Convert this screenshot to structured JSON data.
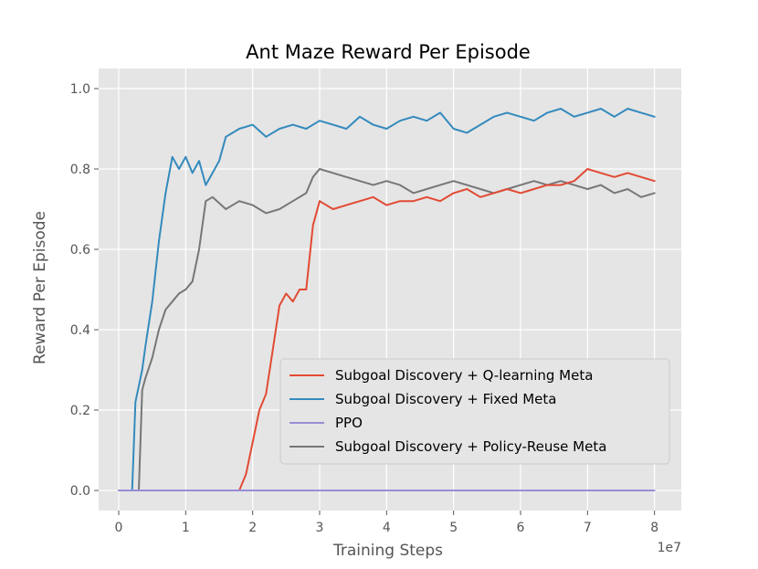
{
  "chart_data": {
    "type": "line",
    "title": "Ant Maze Reward Per Episode",
    "xlabel": "Training Steps",
    "ylabel": "Reward Per Episode",
    "x_scale_label": "1e7",
    "xlim": [
      -0.3,
      8.4
    ],
    "ylim": [
      -0.05,
      1.05
    ],
    "x_ticks": [
      0,
      1,
      2,
      3,
      4,
      5,
      6,
      7,
      8
    ],
    "y_ticks": [
      0.0,
      0.2,
      0.4,
      0.6,
      0.8,
      1.0
    ],
    "x_tick_labels": [
      "0",
      "1",
      "2",
      "3",
      "4",
      "5",
      "6",
      "7",
      "8"
    ],
    "y_tick_labels": [
      "0.0",
      "0.2",
      "0.4",
      "0.6",
      "0.8",
      "1.0"
    ],
    "grid": true,
    "legend_position": "lower-right",
    "series": [
      {
        "name": "Subgoal Discovery + Q-learning Meta",
        "color": "#e24a33",
        "x": [
          0,
          1.8,
          1.9,
          2.0,
          2.1,
          2.2,
          2.3,
          2.4,
          2.5,
          2.6,
          2.7,
          2.8,
          2.9,
          3.0,
          3.2,
          3.4,
          3.6,
          3.8,
          4.0,
          4.2,
          4.4,
          4.6,
          4.8,
          5.0,
          5.2,
          5.4,
          5.6,
          5.8,
          6.0,
          6.2,
          6.4,
          6.6,
          6.8,
          7.0,
          7.2,
          7.4,
          7.6,
          7.8,
          8.0
        ],
        "values": [
          0.0,
          0.0,
          0.04,
          0.12,
          0.2,
          0.24,
          0.35,
          0.46,
          0.49,
          0.47,
          0.5,
          0.5,
          0.66,
          0.72,
          0.7,
          0.71,
          0.72,
          0.73,
          0.71,
          0.72,
          0.72,
          0.73,
          0.72,
          0.74,
          0.75,
          0.73,
          0.74,
          0.75,
          0.74,
          0.75,
          0.76,
          0.76,
          0.77,
          0.8,
          0.79,
          0.78,
          0.79,
          0.78,
          0.77
        ]
      },
      {
        "name": "Subgoal Discovery + Fixed Meta",
        "color": "#348abd",
        "x": [
          0,
          0.2,
          0.25,
          0.3,
          0.35,
          0.4,
          0.5,
          0.6,
          0.7,
          0.8,
          0.9,
          1.0,
          1.1,
          1.2,
          1.3,
          1.4,
          1.5,
          1.6,
          1.8,
          2.0,
          2.2,
          2.4,
          2.6,
          2.8,
          3.0,
          3.2,
          3.4,
          3.6,
          3.8,
          4.0,
          4.2,
          4.4,
          4.6,
          4.8,
          5.0,
          5.2,
          5.4,
          5.6,
          5.8,
          6.0,
          6.2,
          6.4,
          6.6,
          6.8,
          7.0,
          7.2,
          7.4,
          7.6,
          7.8,
          8.0
        ],
        "values": [
          0.0,
          0.0,
          0.22,
          0.26,
          0.3,
          0.36,
          0.47,
          0.62,
          0.74,
          0.83,
          0.8,
          0.83,
          0.79,
          0.82,
          0.76,
          0.79,
          0.82,
          0.88,
          0.9,
          0.91,
          0.88,
          0.9,
          0.91,
          0.9,
          0.92,
          0.91,
          0.9,
          0.93,
          0.91,
          0.9,
          0.92,
          0.93,
          0.92,
          0.94,
          0.9,
          0.89,
          0.91,
          0.93,
          0.94,
          0.93,
          0.92,
          0.94,
          0.95,
          0.93,
          0.94,
          0.95,
          0.93,
          0.95,
          0.94,
          0.93
        ]
      },
      {
        "name": "PPO",
        "color": "#988ed5",
        "x": [
          0,
          8
        ],
        "values": [
          0.0,
          0.0
        ]
      },
      {
        "name": "Subgoal Discovery + Policy-Reuse Meta",
        "color": "#777777",
        "x": [
          0,
          0.3,
          0.35,
          0.4,
          0.5,
          0.6,
          0.7,
          0.8,
          0.9,
          1.0,
          1.1,
          1.2,
          1.3,
          1.4,
          1.6,
          1.8,
          2.0,
          2.2,
          2.4,
          2.6,
          2.8,
          2.9,
          3.0,
          3.2,
          3.4,
          3.6,
          3.8,
          4.0,
          4.2,
          4.4,
          4.6,
          4.8,
          5.0,
          5.2,
          5.4,
          5.6,
          5.8,
          6.0,
          6.2,
          6.4,
          6.6,
          6.8,
          7.0,
          7.2,
          7.4,
          7.6,
          7.8,
          8.0
        ],
        "values": [
          0.0,
          0.0,
          0.25,
          0.28,
          0.33,
          0.4,
          0.45,
          0.47,
          0.49,
          0.5,
          0.52,
          0.6,
          0.72,
          0.73,
          0.7,
          0.72,
          0.71,
          0.69,
          0.7,
          0.72,
          0.74,
          0.78,
          0.8,
          0.79,
          0.78,
          0.77,
          0.76,
          0.77,
          0.76,
          0.74,
          0.75,
          0.76,
          0.77,
          0.76,
          0.75,
          0.74,
          0.75,
          0.76,
          0.77,
          0.76,
          0.77,
          0.76,
          0.75,
          0.76,
          0.74,
          0.75,
          0.73,
          0.74
        ]
      }
    ]
  }
}
